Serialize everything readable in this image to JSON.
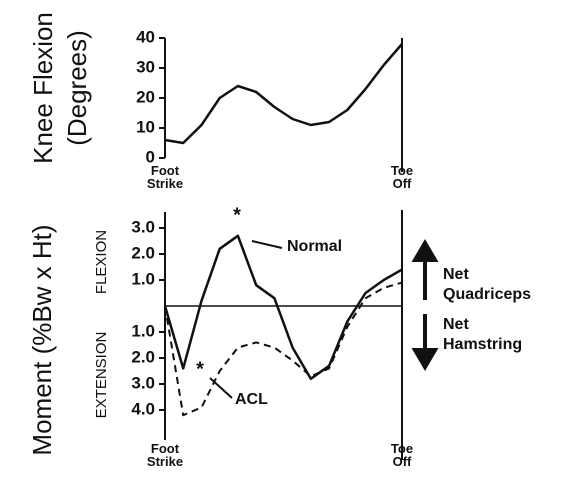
{
  "chart_data": [
    {
      "type": "line",
      "ylabel": [
        "Knee Flexion",
        "(Degrees)"
      ],
      "categories": [
        "Foot Strike",
        null,
        null,
        null,
        null,
        null,
        null,
        null,
        null,
        null,
        null,
        null,
        null,
        "Toe Off"
      ],
      "series": [
        {
          "name": "Knee Flexion",
          "color": "#111111",
          "dash": false,
          "values": [
            6,
            5,
            11,
            20,
            24,
            22,
            17,
            13,
            11,
            12,
            16,
            23,
            31,
            38
          ]
        }
      ],
      "ylim": [
        0,
        40
      ],
      "yticks": [
        0,
        10,
        20,
        30,
        40
      ]
    },
    {
      "type": "line",
      "ylabel": [
        "Moment (%Bw x Ht)"
      ],
      "region_labels": [
        "FLEXION",
        "EXTENSION"
      ],
      "categories": [
        "Foot Strike",
        null,
        null,
        null,
        null,
        null,
        null,
        null,
        null,
        null,
        null,
        null,
        null,
        "Toe Off"
      ],
      "series": [
        {
          "name": "Normal",
          "color": "#111111",
          "dash": false,
          "values": [
            0,
            -2.4,
            0.2,
            2.2,
            2.7,
            0.8,
            0.3,
            -1.6,
            -2.8,
            -2.3,
            -0.6,
            0.5,
            1.0,
            1.4
          ]
        },
        {
          "name": "ACL",
          "color": "#111111",
          "dash": true,
          "values": [
            0,
            -4.2,
            -3.9,
            -2.5,
            -1.6,
            -1.4,
            -1.6,
            -2.1,
            -2.7,
            -2.4,
            -0.8,
            0.3,
            0.7,
            0.9
          ]
        }
      ],
      "annotations": [
        "*",
        "*",
        [
          "Net",
          "Quadriceps"
        ],
        [
          "Net",
          "Hamstring"
        ]
      ],
      "ylim": [
        -5,
        4
      ],
      "yticks": [
        {
          "value": 3,
          "label": "3.0"
        },
        {
          "value": 2,
          "label": "2.0"
        },
        {
          "value": 1,
          "label": "1.0"
        },
        {
          "value": -1,
          "label": "1.0"
        },
        {
          "value": -2,
          "label": "2.0"
        },
        {
          "value": -3,
          "label": "3.0"
        },
        {
          "value": -4,
          "label": "4.0"
        }
      ]
    }
  ]
}
